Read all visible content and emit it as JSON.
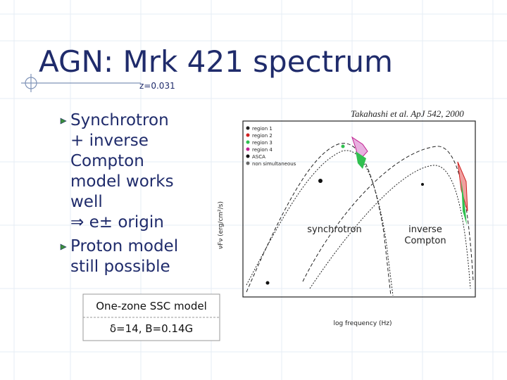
{
  "header": {
    "title": "AGN: Mrk 421 spectrum",
    "subtitle": "z=0.031"
  },
  "bullets": [
    {
      "lines": [
        "Synchrotron",
        "+ inverse",
        "Compton",
        "model works",
        "well",
        "⇒ e± origin"
      ]
    },
    {
      "lines": [
        "Proton model",
        "still possible"
      ]
    }
  ],
  "model_box": {
    "lines": [
      "One-zone SSC model",
      "δ=14, B=0.14G"
    ]
  },
  "figure": {
    "citation": "Takahashi et al. ApJ 542, 2000",
    "synchrotron_label": "synchrotron",
    "compton_label": [
      "inverse",
      "Compton"
    ],
    "legend": [
      "region 1",
      "region 2",
      "region 3",
      "region 4",
      "ASCA",
      "non simultaneous"
    ],
    "x_label": "log frequency (Hz)",
    "y_label": "νFν (erg/cm²/s)"
  }
}
